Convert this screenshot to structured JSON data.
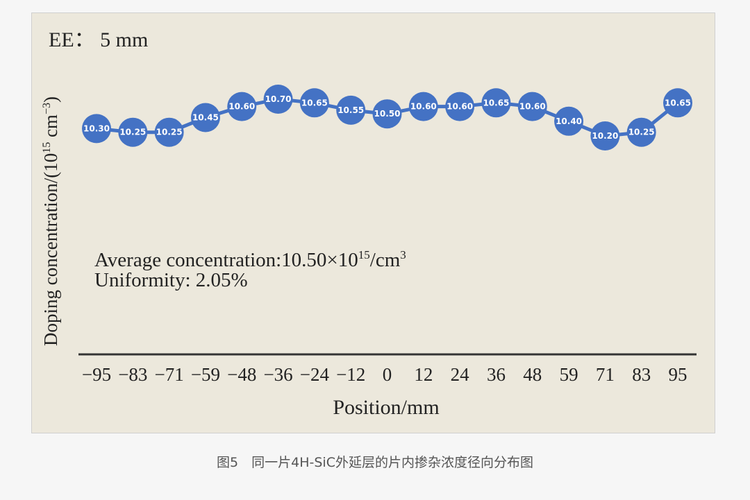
{
  "chart_data": {
    "type": "line",
    "title": "EE： 5 mm",
    "xlabel": "Position/mm",
    "ylabel_main": "Doping concentration/(10",
    "ylabel_exp1": "15",
    "ylabel_unit": " cm",
    "ylabel_exp2": "−3",
    "ylabel_close": ")",
    "categories": [
      "−95",
      "−83",
      "−71",
      "−59",
      "−48",
      "−36",
      "−24",
      "−12",
      "0",
      "12",
      "24",
      "36",
      "48",
      "59",
      "71",
      "83",
      "95"
    ],
    "values": [
      10.3,
      10.25,
      10.25,
      10.45,
      10.6,
      10.7,
      10.65,
      10.55,
      10.5,
      10.6,
      10.6,
      10.65,
      10.6,
      10.4,
      10.2,
      10.25,
      10.65
    ],
    "value_labels": [
      "10.30",
      "10.25",
      "10.25",
      "10.45",
      "10.60",
      "10.70",
      "10.65",
      "10.55",
      "10.50",
      "10.60",
      "10.60",
      "10.65",
      "10.60",
      "10.40",
      "10.20",
      "10.25",
      "10.65"
    ],
    "annotation_avg_prefix": "Average concentration:10.50×10",
    "annotation_avg_exp1": "15",
    "annotation_avg_unit": "/cm",
    "annotation_avg_exp2": "3",
    "annotation_uniformity": "Uniformity: 2.05%",
    "grid": false,
    "marker_color": "#4472c4",
    "line_color": "#4472c4"
  },
  "caption": "图5　同一片4H-SiC外延层的片内掺杂浓度径向分布图"
}
